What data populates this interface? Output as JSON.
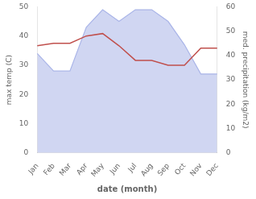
{
  "chart_data": {
    "type": "line",
    "categories": [
      "Jan",
      "Feb",
      "Mar",
      "Apr",
      "May",
      "Jun",
      "Jul",
      "Aug",
      "Sep",
      "Oct",
      "Nov",
      "Dec"
    ],
    "series": [
      {
        "type": "area",
        "color": "#aab5e8",
        "values": [
          34,
          28,
          28,
          43,
          49,
          45,
          49,
          49,
          45,
          37,
          27,
          27
        ]
      },
      {
        "type": "line",
        "color": "#c0504d",
        "axis": "y2",
        "values": [
          44,
          45,
          45,
          48,
          49,
          44,
          38,
          38,
          36,
          36,
          43,
          43
        ]
      }
    ],
    "xlabel": "date (month)",
    "ylabel": "max temp (C)",
    "y2label": "med. precipitation (kg/m2)",
    "ylim": [
      0,
      50
    ],
    "yticks": [
      0,
      10,
      20,
      30,
      40,
      50
    ],
    "y2lim": [
      0,
      60
    ],
    "y2ticks": [
      0,
      10,
      20,
      30,
      40,
      50,
      60
    ],
    "grid": false
  }
}
